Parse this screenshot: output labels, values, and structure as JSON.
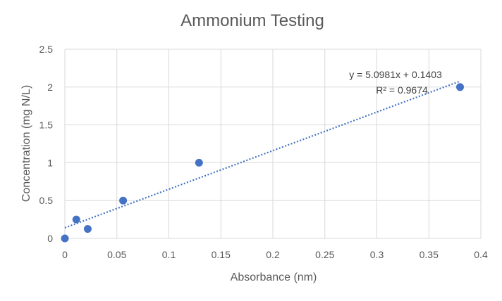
{
  "chart_data": {
    "type": "scatter",
    "title": "Ammonium Testing",
    "xlabel": "Absorbance (nm)",
    "ylabel": "Concentration (mg N/L)",
    "xlim": [
      0,
      0.4
    ],
    "ylim": [
      0,
      2.5
    ],
    "x_ticks": [
      "0",
      "0.05",
      "0.1",
      "0.15",
      "0.2",
      "0.25",
      "0.3",
      "0.35",
      "0.4"
    ],
    "y_ticks": [
      "0",
      "0.5",
      "1",
      "1.5",
      "2",
      "2.5"
    ],
    "grid": true,
    "series": [
      {
        "points": [
          {
            "x": 0,
            "y": 0
          },
          {
            "x": 0.011,
            "y": 0.25
          },
          {
            "x": 0.022,
            "y": 0.125
          },
          {
            "x": 0.056,
            "y": 0.5
          },
          {
            "x": 0.129,
            "y": 1
          },
          {
            "x": 0.38,
            "y": 2
          }
        ],
        "color": "#4472C4"
      }
    ],
    "trendline": {
      "type": "linear",
      "slope": 5.0981,
      "intercept": 0.1403,
      "x_range": [
        0,
        0.38
      ],
      "color": "#4472C4",
      "style": "dotted",
      "equation": "y = 5.0981x + 0.1403",
      "r_squared": "R² = 0.9674"
    }
  }
}
